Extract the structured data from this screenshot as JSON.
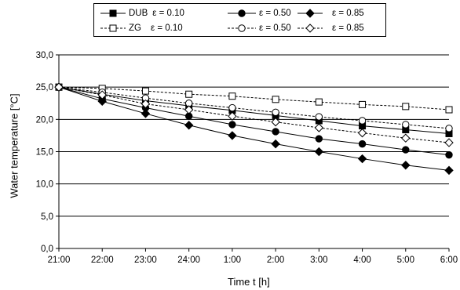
{
  "chart_data": {
    "type": "line",
    "xlabel": "Time t [h]",
    "ylabel": "Water temperature [°C]",
    "categories": [
      "21:00",
      "22:00",
      "23:00",
      "24:00",
      "1:00",
      "2:00",
      "3:00",
      "4:00",
      "5:00",
      "6:00"
    ],
    "yticks": [
      "0,0",
      "5,0",
      "10,0",
      "15,0",
      "20,0",
      "25,0",
      "30,0"
    ],
    "ylim": [
      0,
      30
    ],
    "grid": "horizontal",
    "legend_position": "top",
    "series": [
      {
        "group": "DUB",
        "eps": "ε = 0.10",
        "marker": "square",
        "filled": true,
        "dashed": false,
        "color": "#000000",
        "values": [
          25.0,
          23.9,
          22.9,
          22.1,
          21.4,
          20.6,
          19.8,
          19.0,
          18.4,
          17.8
        ]
      },
      {
        "group": "",
        "eps": "ε = 0.50",
        "marker": "circle",
        "filled": true,
        "dashed": false,
        "color": "#000000",
        "values": [
          25.0,
          23.2,
          21.8,
          20.5,
          19.2,
          18.1,
          17.0,
          16.2,
          15.3,
          14.5
        ]
      },
      {
        "group": "",
        "eps": "ε = 0.85",
        "marker": "diamond",
        "filled": true,
        "dashed": false,
        "color": "#000000",
        "values": [
          25.0,
          22.8,
          20.9,
          19.1,
          17.5,
          16.2,
          15.0,
          13.9,
          12.9,
          12.1
        ]
      },
      {
        "group": "ZG",
        "eps": "ε = 0.10",
        "marker": "square",
        "filled": false,
        "dashed": true,
        "color": "#000000",
        "values": [
          25.0,
          24.8,
          24.4,
          23.9,
          23.6,
          23.1,
          22.7,
          22.3,
          22.0,
          21.5
        ]
      },
      {
        "group": "",
        "eps": "ε = 0.50",
        "marker": "circle",
        "filled": false,
        "dashed": true,
        "color": "#000000",
        "values": [
          25.0,
          24.2,
          23.3,
          22.5,
          21.8,
          21.1,
          20.4,
          19.8,
          19.2,
          18.6
        ]
      },
      {
        "group": "",
        "eps": "ε = 0.85",
        "marker": "diamond",
        "filled": false,
        "dashed": true,
        "color": "#000000",
        "values": [
          25.0,
          23.8,
          22.4,
          21.5,
          20.5,
          19.6,
          18.7,
          17.9,
          17.1,
          16.4
        ]
      }
    ]
  }
}
